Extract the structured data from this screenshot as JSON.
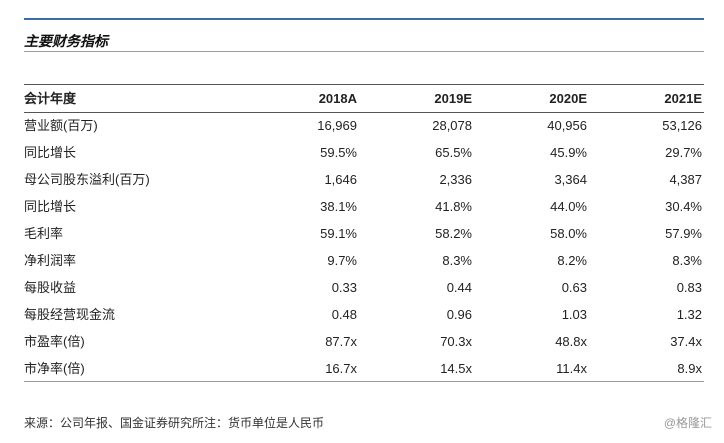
{
  "title": "主要财务指标",
  "table": {
    "header": [
      "会计年度",
      "2018A",
      "2019E",
      "2020E",
      "2021E"
    ],
    "rows": [
      {
        "label": "营业额(百万)",
        "values": [
          "16,969",
          "28,078",
          "40,956",
          "53,126"
        ]
      },
      {
        "label": "同比增长",
        "values": [
          "59.5%",
          "65.5%",
          "45.9%",
          "29.7%"
        ]
      },
      {
        "label": "母公司股东溢利(百万)",
        "values": [
          "1,646",
          "2,336",
          "3,364",
          "4,387"
        ]
      },
      {
        "label": "同比增长",
        "values": [
          "38.1%",
          "41.8%",
          "44.0%",
          "30.4%"
        ]
      },
      {
        "label": "毛利率",
        "values": [
          "59.1%",
          "58.2%",
          "58.0%",
          "57.9%"
        ]
      },
      {
        "label": "净利润率",
        "values": [
          "9.7%",
          "8.3%",
          "8.2%",
          "8.3%"
        ]
      },
      {
        "label": "每股收益",
        "values": [
          "0.33",
          "0.44",
          "0.63",
          "0.83"
        ]
      },
      {
        "label": "每股经营现金流",
        "values": [
          "0.48",
          "0.96",
          "1.03",
          "1.32"
        ]
      },
      {
        "label": "市盈率(倍)",
        "values": [
          "87.7x",
          "70.3x",
          "48.8x",
          "37.4x"
        ]
      },
      {
        "label": "市净率(倍)",
        "values": [
          "16.7x",
          "14.5x",
          "11.4x",
          "8.9x"
        ]
      }
    ]
  },
  "footer": "来源：公司年报、国金证券研究所注：货币单位是人民币",
  "watermark": "@格隆汇"
}
